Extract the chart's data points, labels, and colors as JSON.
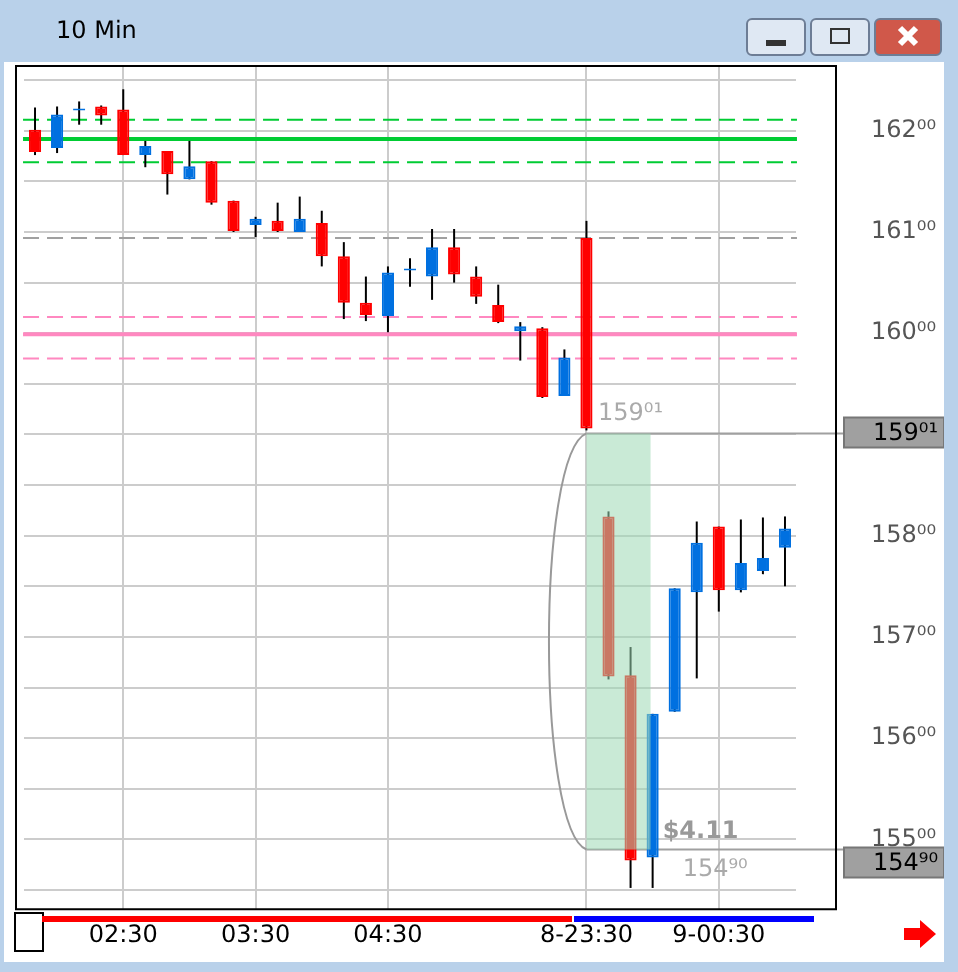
{
  "chart_data": {
    "type": "candlestick",
    "title": "10 Min",
    "categories": [
      null,
      null,
      null,
      null,
      "02:30",
      null,
      null,
      null,
      null,
      null,
      "03:30",
      null,
      null,
      null,
      null,
      null,
      "04:30",
      null,
      null,
      null,
      null,
      null,
      null,
      null,
      null,
      "8-23:30",
      null,
      null,
      null,
      null,
      null,
      "9-00:30",
      null,
      null,
      null
    ],
    "ohlc": [
      [
        162.01,
        162.23,
        161.76,
        161.79
      ],
      [
        161.83,
        162.24,
        161.78,
        162.16
      ],
      [
        162.2,
        162.29,
        162.06,
        162.21
      ],
      [
        162.24,
        162.25,
        162.06,
        162.15
      ],
      [
        162.21,
        162.41,
        161.76,
        161.76
      ],
      [
        161.76,
        161.9,
        161.64,
        161.85
      ],
      [
        161.8,
        161.8,
        161.37,
        161.57
      ],
      [
        161.52,
        161.9,
        161.52,
        161.65
      ],
      [
        161.7,
        161.7,
        161.27,
        161.29
      ],
      [
        161.31,
        161.31,
        161.0,
        161.01
      ],
      [
        161.07,
        161.15,
        160.95,
        161.13
      ],
      [
        161.11,
        161.29,
        161.0,
        161.01
      ],
      [
        161.0,
        161.35,
        161.0,
        161.13
      ],
      [
        161.09,
        161.21,
        160.66,
        160.76
      ],
      [
        160.76,
        160.9,
        160.14,
        160.3
      ],
      [
        160.3,
        160.56,
        160.12,
        160.18
      ],
      [
        160.17,
        160.66,
        160.01,
        160.6
      ],
      [
        160.62,
        160.74,
        160.46,
        160.63
      ],
      [
        160.56,
        161.03,
        160.33,
        160.85
      ],
      [
        160.85,
        161.03,
        160.5,
        160.58
      ],
      [
        160.56,
        160.66,
        160.29,
        160.36
      ],
      [
        160.28,
        160.48,
        160.1,
        160.11
      ],
      [
        160.02,
        160.11,
        159.73,
        160.07
      ],
      [
        160.05,
        160.06,
        159.36,
        159.37
      ],
      [
        159.38,
        159.84,
        159.38,
        159.76
      ],
      [
        160.94,
        161.11,
        159.04,
        159.06
      ],
      [
        158.19,
        158.24,
        156.58,
        156.61
      ],
      [
        156.62,
        156.9,
        154.52,
        154.79
      ],
      [
        154.82,
        156.24,
        154.52,
        156.24
      ],
      [
        156.26,
        157.48,
        156.26,
        157.48
      ],
      [
        157.44,
        158.14,
        156.59,
        157.93
      ],
      [
        158.09,
        158.09,
        157.25,
        157.46
      ],
      [
        157.46,
        158.16,
        157.44,
        157.73
      ],
      [
        157.65,
        158.18,
        157.62,
        157.78
      ],
      [
        157.88,
        158.19,
        157.5,
        158.07
      ]
    ],
    "colors": [
      "#ff0000",
      "#0070e0",
      "#0070e0",
      "#ff0000",
      "#ff0000",
      "#0070e0",
      "#ff0000",
      "#0070e0",
      "#ff0000",
      "#ff0000",
      "#0070e0",
      "#ff0000",
      "#0070e0",
      "#ff0000",
      "#ff0000",
      "#ff0000",
      "#0070e0",
      "#0070e0",
      "#0070e0",
      "#ff0000",
      "#ff0000",
      "#ff0000",
      "#0070e0",
      "#ff0000",
      "#0070e0",
      "#ff0000",
      "#ff0000",
      "#ff0000",
      "#0070e0",
      "#0070e0",
      "#0070e0",
      "#ff0000",
      "#0070e0",
      "#0070e0",
      "#0070e0"
    ],
    "ylim": [
      154.31,
      162.64
    ],
    "yticks": [
      {
        "value": 154.5,
        "label": null
      },
      {
        "value": 155,
        "label": "155⁰⁰"
      },
      {
        "value": 155.5,
        "label": null
      },
      {
        "value": 156,
        "label": "156⁰⁰"
      },
      {
        "value": 156.5,
        "label": null
      },
      {
        "value": 157,
        "label": "157⁰⁰"
      },
      {
        "value": 157.5,
        "label": null
      },
      {
        "value": 158,
        "label": "158⁰⁰"
      },
      {
        "value": 158.5,
        "label": null
      },
      {
        "value": 159,
        "label": null
      },
      {
        "value": 159.5,
        "label": null
      },
      {
        "value": 160,
        "label": "160⁰⁰"
      },
      {
        "value": 160.5,
        "label": null
      },
      {
        "value": 161,
        "label": "161⁰⁰"
      },
      {
        "value": 161.5,
        "label": null
      },
      {
        "value": 162,
        "label": "162⁰⁰"
      },
      {
        "value": 162.5,
        "label": null
      }
    ],
    "grid": true,
    "legend": false,
    "ref_lines": [
      {
        "axis": "y",
        "value": 162.11,
        "color": "#00cc33",
        "line_style": "dashed"
      },
      {
        "axis": "y",
        "value": 161.92,
        "color": "#00cc33",
        "line_style": "solid"
      },
      {
        "axis": "y",
        "value": 161.69,
        "color": "#00cc33",
        "line_style": "dashed"
      },
      {
        "axis": "y",
        "value": 160.94,
        "color": "#a0a0a0",
        "line_style": "dashed"
      },
      {
        "axis": "y",
        "value": 160.16,
        "color": "#ff88c0",
        "line_style": "dashed"
      },
      {
        "axis": "y",
        "value": 159.99,
        "color": "#ff88c0",
        "line_style": "solid"
      },
      {
        "axis": "y",
        "value": 159.75,
        "color": "#ff88c0",
        "line_style": "dashed"
      },
      {
        "axis": "y",
        "value": 159.01,
        "color": "#a0a0a0",
        "line_style": "solid",
        "label": "159⁰¹"
      },
      {
        "axis": "y",
        "value": 154.9,
        "color": "#a0a0a0",
        "line_style": "solid",
        "label": "154⁹⁰"
      }
    ],
    "bands": [
      {
        "axis": "y",
        "from": 154.9,
        "to": 159.01,
        "color": "#9dd9b5",
        "label": "$4.11"
      }
    ],
    "annotations": [
      {
        "text": "159⁰¹",
        "y": 159.01
      },
      {
        "text": "154⁹⁰",
        "y": 154.9
      }
    ]
  }
}
